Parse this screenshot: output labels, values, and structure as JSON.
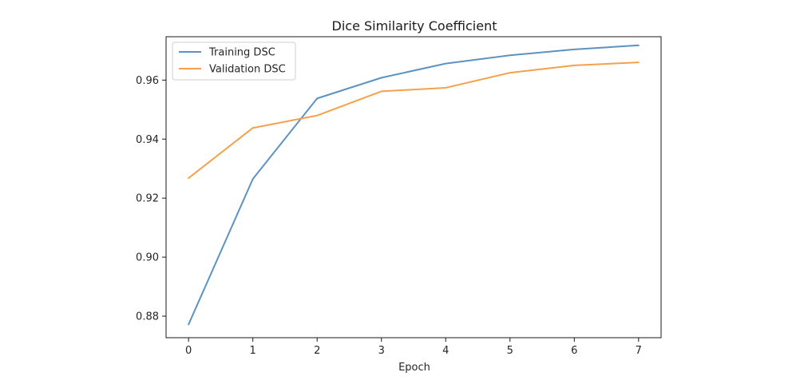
{
  "chart_data": {
    "type": "line",
    "title": "Dice Similarity Coefficient",
    "xlabel": "Epoch",
    "ylabel": "",
    "x": [
      0,
      1,
      2,
      3,
      4,
      5,
      6,
      7
    ],
    "x_ticks": [
      "0",
      "1",
      "2",
      "3",
      "4",
      "5",
      "6",
      "7"
    ],
    "y_ticks": [
      "0.88",
      "0.90",
      "0.92",
      "0.94",
      "0.96"
    ],
    "y_tick_values": [
      0.88,
      0.9,
      0.92,
      0.94,
      0.96
    ],
    "xlim": [
      -0.35,
      7.35
    ],
    "ylim": [
      0.8727,
      0.9747
    ],
    "grid": false,
    "legend_position": "top-left",
    "series": [
      {
        "name": "Training DSC",
        "color": "#5b92c2",
        "values": [
          0.8772,
          0.9265,
          0.9538,
          0.9608,
          0.9656,
          0.9684,
          0.9704,
          0.9718
        ]
      },
      {
        "name": "Validation DSC",
        "color": "#f5a04c",
        "values": [
          0.9268,
          0.9438,
          0.948,
          0.9562,
          0.9574,
          0.9625,
          0.965,
          0.966
        ]
      }
    ]
  }
}
